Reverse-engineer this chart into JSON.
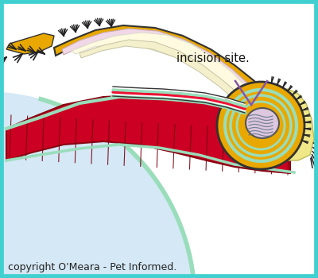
{
  "bg_color": "#ffffff",
  "border_color": "#40d0d0",
  "fig_width": 4.0,
  "fig_height": 3.5,
  "dpi": 100,
  "copyright_text": "copyright O'Meara - Pet Informed.",
  "copyright_fontsize": 9,
  "annotation_text": "incision site.",
  "annotation_fontsize": 10.5,
  "arrow_color": "#8855aa",
  "light_blue_bg": "#d4e8f5",
  "skin_orange": "#e8a800",
  "muscle_red": "#cc0022",
  "muscle_dark": "#880010",
  "fascia_green": "#99ddbb",
  "cream_inner": "#fffae0",
  "pink_inner": "#f0d8e8",
  "testicle_pink": "#ddc8e0",
  "vas_red": "#ee1133",
  "white_tissue": "#f8f8ee",
  "cord_green": "#99ddbb",
  "fat_yellow": "#f0e888"
}
